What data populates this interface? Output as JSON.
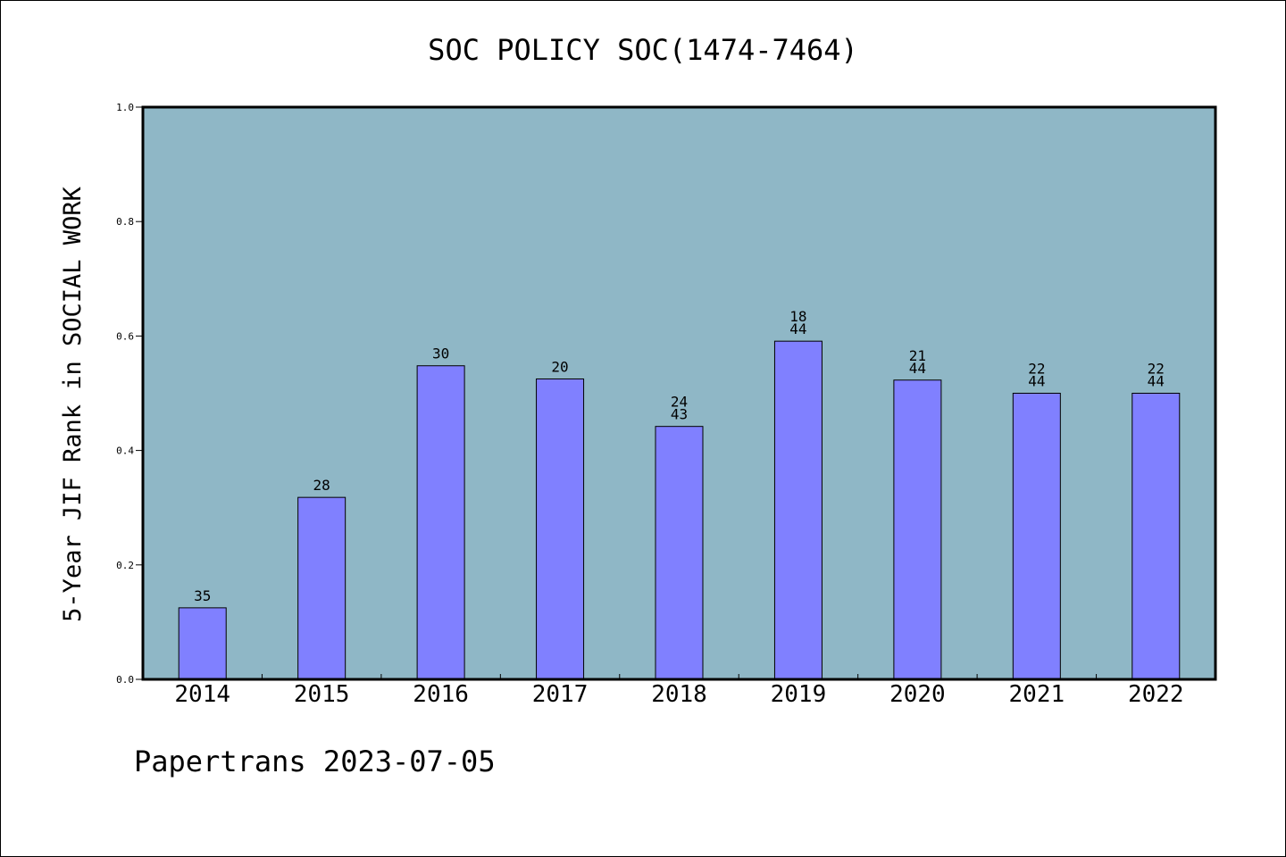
{
  "title": "SOC POLICY SOC(1474-7464)",
  "footer": "Papertrans 2023-07-05",
  "chart_data": {
    "type": "bar",
    "title": "SOC POLICY SOC(1474-7464)",
    "xlabel": "",
    "ylabel": "5-Year JIF Rank in SOCIAL WORK",
    "categories": [
      "2014",
      "2015",
      "2016",
      "2017",
      "2018",
      "2019",
      "2020",
      "2021",
      "2022"
    ],
    "values": [
      0.125,
      0.318,
      0.548,
      0.525,
      0.442,
      0.591,
      0.523,
      0.5,
      0.5
    ],
    "bar_labels": [
      [
        "35"
      ],
      [
        "28"
      ],
      [
        "30"
      ],
      [
        "20"
      ],
      [
        "24",
        "43"
      ],
      [
        "18",
        "44"
      ],
      [
        "21",
        "44"
      ],
      [
        "22",
        "44"
      ],
      [
        "22",
        "44"
      ]
    ],
    "ylim": [
      0,
      1.0
    ],
    "yticks": [
      0.0,
      0.2,
      0.4,
      0.6,
      0.8,
      1.0
    ],
    "ytick_labels": [
      "0.0",
      "0.2",
      "0.4",
      "0.6",
      "0.8",
      "1.0"
    ],
    "grid": false,
    "legend": "none",
    "colors": {
      "plot_background": "#8fb7c6",
      "bar_fill": "#8080ff",
      "bar_stroke": "#000000",
      "axis": "#000000"
    }
  }
}
